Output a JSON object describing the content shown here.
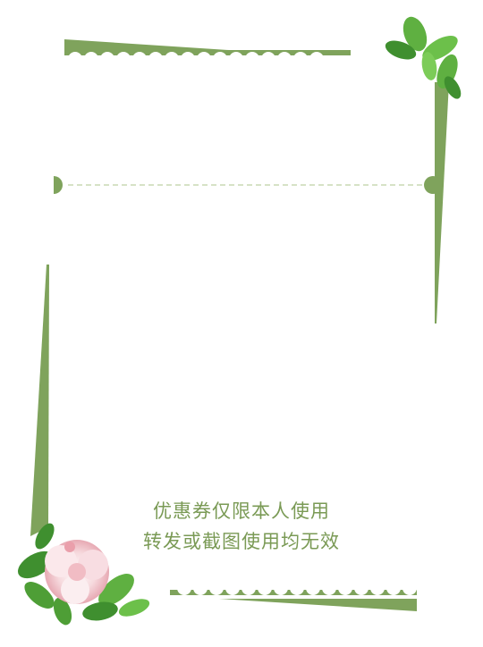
{
  "coupon": {
    "notice_line_1": "优惠券仅限本人使用",
    "notice_line_2": "转发或截图使用均无效"
  },
  "colors": {
    "frame_green": "#7fa35c",
    "text_green": "#7a9a55",
    "dash_line": "#c9d8b4",
    "leaf_dark": "#3f8f2f",
    "leaf_light": "#6cc04a",
    "flower_pink": "#f3c9cf"
  },
  "icons": [
    "leaf-cluster-icon",
    "flower-icon",
    "notch-icon"
  ]
}
